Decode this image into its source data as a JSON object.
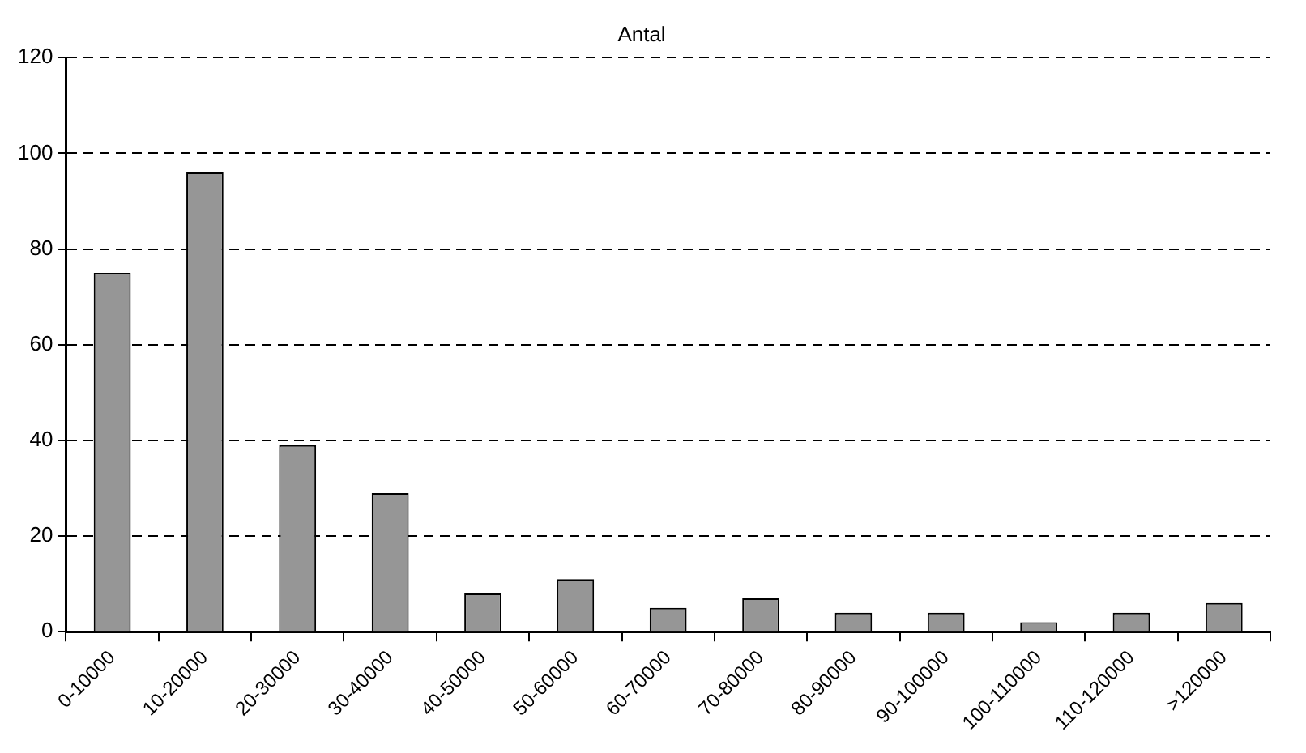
{
  "chart_data": {
    "type": "bar",
    "title": "Antal",
    "categories": [
      "0-10000",
      "10-20000",
      "20-30000",
      "30-40000",
      "40-50000",
      "50-60000",
      "60-70000",
      "70-80000",
      "80-90000",
      "90-100000",
      "100-110000",
      "110-120000",
      ">120000"
    ],
    "values": [
      75,
      96,
      39,
      29,
      8,
      11,
      5,
      7,
      4,
      4,
      2,
      4,
      6
    ],
    "color": "#969696",
    "ylim": [
      0,
      120
    ],
    "yticks": [
      0,
      20,
      40,
      60,
      80,
      100,
      120
    ],
    "grid": "y",
    "legend": false
  }
}
